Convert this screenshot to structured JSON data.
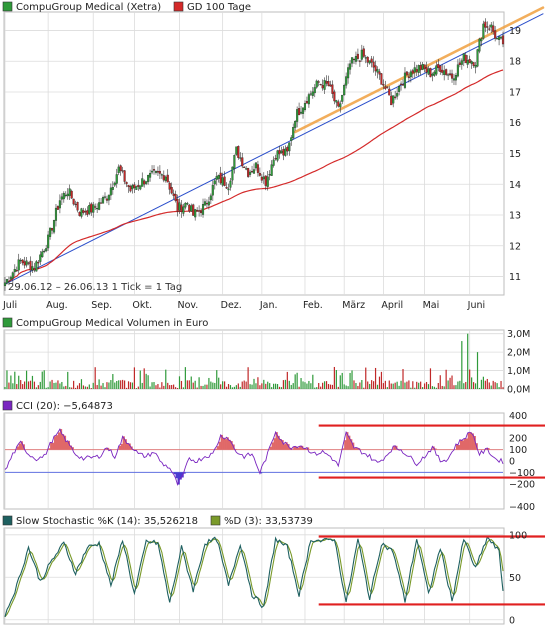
{
  "colors": {
    "up": "#2f9a3a",
    "down": "#c02828",
    "ma": "#d42a2a",
    "trend_blue": "#2a4ecb",
    "trend_orange": "#f0a040",
    "cci_purple": "#7a26c0",
    "cci_fill_pos": "#e06868",
    "cci_fill_neg": "#4a3ad0",
    "stoch_k": "#1e6060",
    "stoch_d": "#7a9a2a",
    "annot_red": "#e02020",
    "grid": "#dcdcdc"
  },
  "chart_data": [
    {
      "id": "price",
      "type": "candlestick",
      "legend": [
        {
          "label": "CompuGroup Medical (Xetra)",
          "color": "#2f9a3a"
        },
        {
          "label": "GD 100 Tage",
          "color": "#d42a2a"
        }
      ],
      "info_text": "29.06.12 – 26.06.13   1 Tick = 1 Tag",
      "x_tick_labels": [
        "Juli",
        "Aug.",
        "Sep.",
        "Okt.",
        "Nov.",
        "Dez.",
        "Jan.",
        "Feb.",
        "März",
        "April",
        "Mai",
        "Juni"
      ],
      "y_ticks": [
        11,
        12,
        13,
        14,
        15,
        16,
        17,
        18,
        19
      ],
      "y_tick_labels": [
        "11",
        "12",
        "13",
        "14",
        "15",
        "16",
        "17",
        "18",
        "19"
      ],
      "ylim": [
        10.4,
        19.6
      ],
      "close_anchors": [
        [
          0,
          10.8
        ],
        [
          8,
          11.5
        ],
        [
          15,
          11.3
        ],
        [
          22,
          12.2
        ],
        [
          28,
          13.5
        ],
        [
          32,
          13.8
        ],
        [
          38,
          13.1
        ],
        [
          45,
          13.2
        ],
        [
          52,
          13.6
        ],
        [
          58,
          14.5
        ],
        [
          64,
          13.8
        ],
        [
          70,
          14.1
        ],
        [
          76,
          14.3
        ],
        [
          82,
          14.3
        ],
        [
          88,
          13.2
        ],
        [
          93,
          13.4
        ],
        [
          96,
          13.0
        ],
        [
          102,
          13.3
        ],
        [
          108,
          14.2
        ],
        [
          114,
          14.0
        ],
        [
          118,
          15.1
        ],
        [
          124,
          14.4
        ],
        [
          128,
          14.6
        ],
        [
          133,
          14.1
        ],
        [
          138,
          15.0
        ],
        [
          144,
          15.0
        ],
        [
          148,
          16.2
        ],
        [
          154,
          16.8
        ],
        [
          160,
          17.3
        ],
        [
          165,
          17.2
        ],
        [
          170,
          16.4
        ],
        [
          176,
          17.9
        ],
        [
          182,
          18.2
        ],
        [
          188,
          17.8
        ],
        [
          192,
          17.4
        ],
        [
          197,
          16.7
        ],
        [
          202,
          17.3
        ],
        [
          207,
          17.7
        ],
        [
          212,
          17.8
        ],
        [
          217,
          17.6
        ],
        [
          222,
          17.8
        ],
        [
          228,
          17.5
        ],
        [
          234,
          18.1
        ],
        [
          240,
          18.0
        ],
        [
          244,
          19.2
        ],
        [
          248,
          19.1
        ],
        [
          251,
          18.7
        ],
        [
          254,
          18.6
        ]
      ],
      "ma_100": {
        "x_start": 2,
        "x_end": 254,
        "start": 11.0,
        "end": 17.6
      },
      "trendlines": [
        {
          "color": "blue",
          "from": [
            0,
            10.75
          ],
          "to": [
            254,
            18.9
          ]
        },
        {
          "color": "orange",
          "from": [
            148,
            15.7
          ],
          "to": [
            254,
            19.1
          ]
        }
      ]
    },
    {
      "id": "volume",
      "type": "bar",
      "legend": [
        {
          "label": "CompuGroup Medical Volumen in Euro",
          "color": "#2f9a3a"
        }
      ],
      "y_ticks": [
        0,
        1,
        2,
        3
      ],
      "y_tick_labels": [
        "0,0M",
        "1,0M",
        "2,0M",
        "3,0M"
      ],
      "ylim": [
        0,
        3.2
      ],
      "spikes": [
        [
          233,
          2.6
        ],
        [
          236,
          3.0
        ],
        [
          241,
          2.0
        ]
      ]
    },
    {
      "id": "cci",
      "type": "line",
      "legend": [
        {
          "label": "CCI (20): −5,64873",
          "color": "#7a26c0"
        }
      ],
      "y_ticks": [
        400,
        200,
        100,
        0,
        -100,
        -200,
        -400
      ],
      "y_tick_labels": [
        "400",
        "200",
        "100",
        "0",
        "−100",
        "−200",
        "−400"
      ],
      "ylim": [
        -420,
        420
      ],
      "reference_lines": [
        100,
        -100
      ],
      "anchors": [
        [
          0,
          -90
        ],
        [
          4,
          60
        ],
        [
          8,
          160
        ],
        [
          12,
          60
        ],
        [
          16,
          20
        ],
        [
          20,
          40
        ],
        [
          24,
          180
        ],
        [
          28,
          260
        ],
        [
          32,
          160
        ],
        [
          36,
          60
        ],
        [
          40,
          20
        ],
        [
          44,
          30
        ],
        [
          48,
          40
        ],
        [
          52,
          120
        ],
        [
          56,
          40
        ],
        [
          60,
          200
        ],
        [
          64,
          140
        ],
        [
          68,
          60
        ],
        [
          72,
          40
        ],
        [
          76,
          80
        ],
        [
          80,
          -20
        ],
        [
          84,
          -60
        ],
        [
          88,
          -200
        ],
        [
          90,
          -160
        ],
        [
          94,
          20
        ],
        [
          98,
          0
        ],
        [
          102,
          40
        ],
        [
          106,
          60
        ],
        [
          110,
          220
        ],
        [
          114,
          200
        ],
        [
          118,
          80
        ],
        [
          122,
          40
        ],
        [
          126,
          60
        ],
        [
          130,
          -100
        ],
        [
          134,
          60
        ],
        [
          138,
          260
        ],
        [
          142,
          160
        ],
        [
          146,
          120
        ],
        [
          150,
          140
        ],
        [
          154,
          110
        ],
        [
          158,
          60
        ],
        [
          162,
          80
        ],
        [
          166,
          40
        ],
        [
          170,
          -40
        ],
        [
          174,
          240
        ],
        [
          178,
          120
        ],
        [
          182,
          80
        ],
        [
          186,
          40
        ],
        [
          190,
          -20
        ],
        [
          194,
          40
        ],
        [
          198,
          120
        ],
        [
          202,
          100
        ],
        [
          206,
          40
        ],
        [
          210,
          -20
        ],
        [
          214,
          40
        ],
        [
          218,
          120
        ],
        [
          222,
          0
        ],
        [
          226,
          20
        ],
        [
          230,
          140
        ],
        [
          234,
          200
        ],
        [
          238,
          260
        ],
        [
          242,
          60
        ],
        [
          246,
          100
        ],
        [
          250,
          20
        ],
        [
          254,
          -6
        ]
      ],
      "annotations": [
        {
          "from": [
            160,
            310
          ],
          "to": [
            272,
            310
          ]
        },
        {
          "from": [
            160,
            -145
          ],
          "to": [
            272,
            -145
          ]
        }
      ]
    },
    {
      "id": "stoch",
      "type": "line",
      "legend": [
        {
          "label": "Slow Stochastic %K (14): 35,526218",
          "color": "#1e6060"
        },
        {
          "label": "%D (3): 33,53739",
          "color": "#7a9a2a"
        }
      ],
      "y_ticks": [
        100,
        50,
        0
      ],
      "y_tick_labels": [
        "100",
        "50",
        "0"
      ],
      "ylim": [
        -5,
        108
      ],
      "anchors": [
        [
          0,
          5
        ],
        [
          6,
          40
        ],
        [
          12,
          85
        ],
        [
          18,
          45
        ],
        [
          24,
          70
        ],
        [
          30,
          90
        ],
        [
          36,
          55
        ],
        [
          42,
          85
        ],
        [
          48,
          90
        ],
        [
          54,
          40
        ],
        [
          60,
          95
        ],
        [
          66,
          30
        ],
        [
          72,
          92
        ],
        [
          78,
          90
        ],
        [
          84,
          20
        ],
        [
          90,
          85
        ],
        [
          96,
          35
        ],
        [
          102,
          90
        ],
        [
          108,
          95
        ],
        [
          114,
          40
        ],
        [
          120,
          90
        ],
        [
          126,
          30
        ],
        [
          132,
          15
        ],
        [
          138,
          95
        ],
        [
          144,
          85
        ],
        [
          150,
          30
        ],
        [
          156,
          95
        ],
        [
          162,
          92
        ],
        [
          168,
          96
        ],
        [
          174,
          20
        ],
        [
          180,
          95
        ],
        [
          186,
          25
        ],
        [
          192,
          90
        ],
        [
          198,
          80
        ],
        [
          204,
          22
        ],
        [
          210,
          96
        ],
        [
          216,
          30
        ],
        [
          222,
          85
        ],
        [
          228,
          22
        ],
        [
          234,
          95
        ],
        [
          240,
          60
        ],
        [
          246,
          97
        ],
        [
          252,
          80
        ],
        [
          254,
          35
        ]
      ],
      "annotations": [
        {
          "from": [
            160,
            98
          ],
          "to": [
            272,
            98
          ]
        },
        {
          "from": [
            160,
            18
          ],
          "to": [
            272,
            18
          ]
        }
      ]
    }
  ]
}
